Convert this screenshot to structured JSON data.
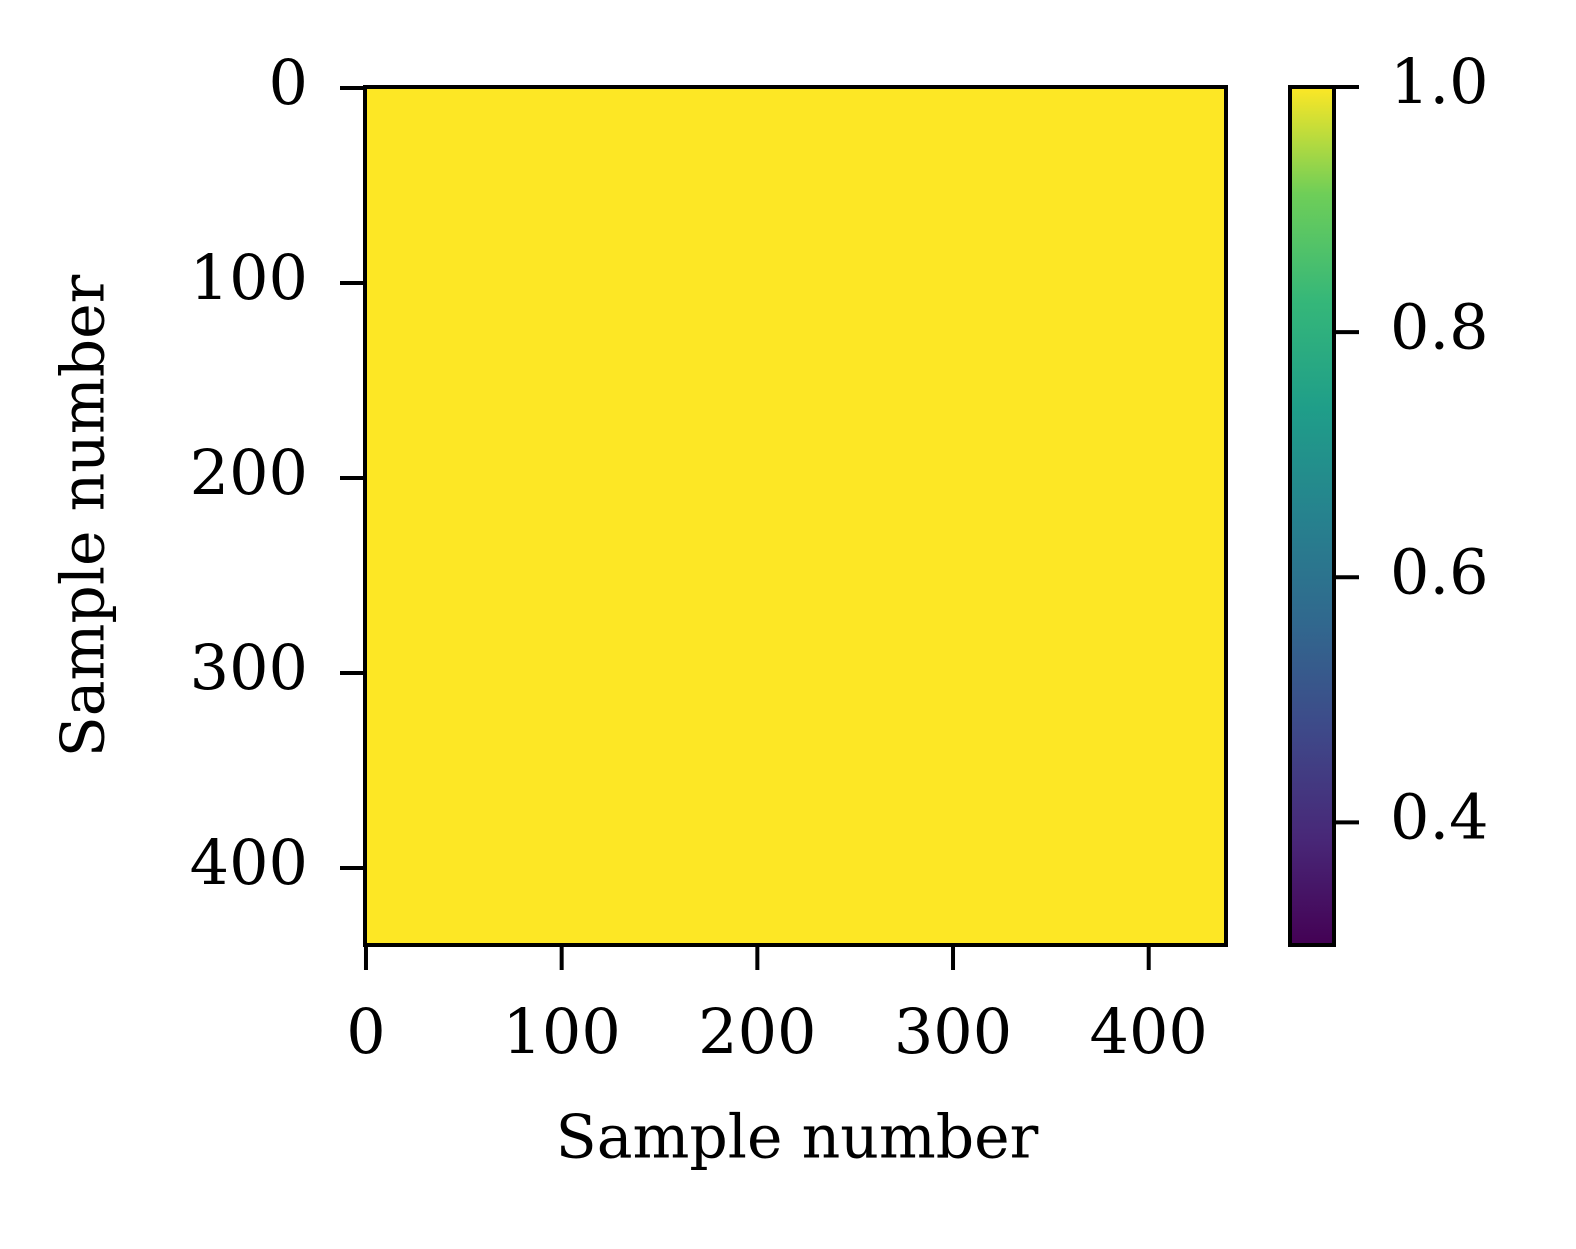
{
  "chart_data": {
    "type": "heatmap",
    "xlabel": "Sample number",
    "ylabel": "Sample number",
    "values": [
      [
        1.0
      ]
    ],
    "colormap": "viridis",
    "xlim": [
      -0.5,
      439.5
    ],
    "ylim": [
      439.5,
      -0.5
    ],
    "xticks": [
      0,
      100,
      200,
      300,
      400
    ],
    "yticks": [
      0,
      100,
      200,
      300,
      400
    ],
    "colorbar": {
      "lim": [
        0.3,
        1.0
      ],
      "ticks": [
        0.4,
        0.6,
        0.8,
        {
          "value": 1.0,
          "label": "1.0"
        }
      ]
    }
  }
}
